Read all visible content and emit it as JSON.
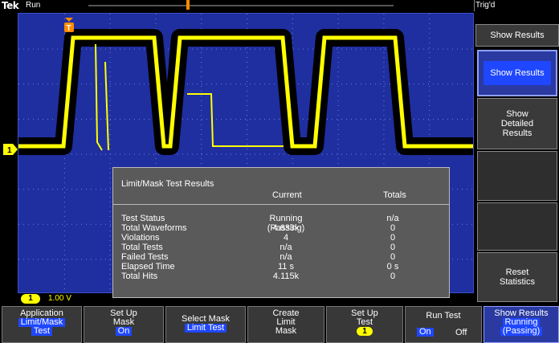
{
  "topbar": {
    "logo": "Tek",
    "run_state": "Run",
    "trig_state": "Trig'd"
  },
  "channel": {
    "number": "1",
    "scale": "1.00 V",
    "color": "#ffff00"
  },
  "trigger_marker_label": "T",
  "results": {
    "title": "Limit/Mask Test Results",
    "col_current": "Current",
    "col_totals": "Totals",
    "rows": [
      {
        "label": "Test Status",
        "current": "Running (Passing)",
        "totals": "n/a"
      },
      {
        "label": "Total Waveforms",
        "current": "4.633k",
        "totals": "0"
      },
      {
        "label": "Violations",
        "current": "4",
        "totals": "0"
      },
      {
        "label": "Total Tests",
        "current": "n/a",
        "totals": "0"
      },
      {
        "label": "Failed Tests",
        "current": "n/a",
        "totals": "0"
      },
      {
        "label": "Elapsed Time",
        "current": "11 s",
        "totals": "0 s"
      },
      {
        "label": "Total Hits",
        "current": "4.115k",
        "totals": "0"
      }
    ]
  },
  "side_menu": {
    "title": "Show Results",
    "show_results": "Show Results",
    "show_detailed_1": "Show",
    "show_detailed_2": "Detailed",
    "show_detailed_3": "Results",
    "reset_1": "Reset",
    "reset_2": "Statistics"
  },
  "bottom_menu": {
    "application_label": "Application",
    "application_value_1": "Limit/Mask",
    "application_value_2": "Test",
    "setup_mask_1": "Set Up",
    "setup_mask_2": "Mask",
    "setup_mask_value": "On",
    "select_mask_label": "Select Mask",
    "select_mask_value": "Limit Test",
    "create_1": "Create",
    "create_2": "Limit",
    "create_3": "Mask",
    "setup_test_1": "Set Up",
    "setup_test_2": "Test",
    "setup_test_value": "1",
    "run_test_label": "Run Test",
    "run_test_on": "On",
    "run_test_off": "Off",
    "show_results_label": "Show Results",
    "show_results_value_1": "Running",
    "show_results_value_2": "(Passing)"
  },
  "colors": {
    "graticule_bg": "#1f2fa0",
    "trace": "#ffff00",
    "mask": "#000000",
    "highlight": "#1f47ff",
    "trigger_marker": "#ff8c00"
  }
}
